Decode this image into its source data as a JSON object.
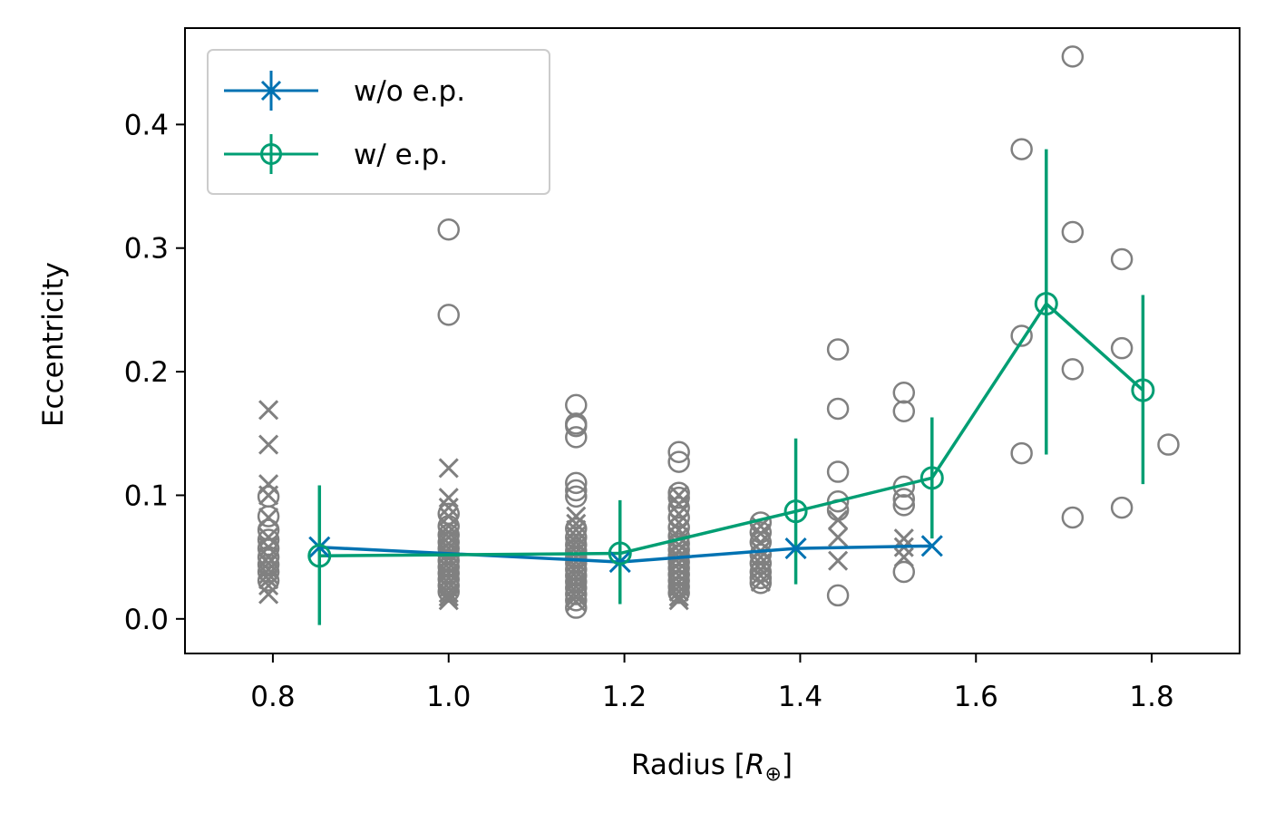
{
  "chart_data": {
    "type": "scatter",
    "title": "",
    "xlabel": "Radius [R_⊕]",
    "xlabel_parts": {
      "prefix": "Radius [",
      "symbol": "R",
      "subscript": "⊕",
      "suffix": "]"
    },
    "ylabel": "Eccentricity",
    "xlim": [
      0.7,
      1.9
    ],
    "ylim": [
      -0.028,
      0.478
    ],
    "xticks": [
      0.8,
      1.0,
      1.2,
      1.4,
      1.6,
      1.8
    ],
    "xtick_labels": [
      "0.8",
      "1.0",
      "1.2",
      "1.4",
      "1.6",
      "1.8"
    ],
    "yticks": [
      0.0,
      0.1,
      0.2,
      0.3,
      0.4
    ],
    "ytick_labels": [
      "0.0",
      "0.1",
      "0.2",
      "0.3",
      "0.4"
    ],
    "grid": false,
    "legend_position": "top-left",
    "colors": {
      "wo_ep": "#0072B2",
      "w_ep": "#009E73",
      "scatter": "#808080"
    },
    "series": [
      {
        "name": "w/o e.p.",
        "marker": "x",
        "color": "#0072B2",
        "points": [
          {
            "x": 0.853,
            "y": 0.058
          },
          {
            "x": 1.195,
            "y": 0.046
          },
          {
            "x": 1.395,
            "y": 0.057
          },
          {
            "x": 1.55,
            "y": 0.059
          }
        ]
      },
      {
        "name": "w/ e.p.",
        "marker": "o",
        "color": "#009E73",
        "points": [
          {
            "x": 0.853,
            "y": 0.051,
            "err_low": -0.005,
            "err_high": 0.108
          },
          {
            "x": 1.195,
            "y": 0.053,
            "err_low": 0.012,
            "err_high": 0.096
          },
          {
            "x": 1.395,
            "y": 0.087,
            "err_low": 0.028,
            "err_high": 0.146
          },
          {
            "x": 1.55,
            "y": 0.114,
            "err_low": 0.065,
            "err_high": 0.163
          },
          {
            "x": 1.68,
            "y": 0.255,
            "err_low": 0.133,
            "err_high": 0.38
          },
          {
            "x": 1.79,
            "y": 0.185,
            "err_low": 0.109,
            "err_high": 0.262
          }
        ]
      }
    ],
    "scatter_crosses": [
      {
        "x": 0.795,
        "y": [
          0.169,
          0.141,
          0.109,
          0.1,
          0.082,
          0.066,
          0.058,
          0.05,
          0.045,
          0.04,
          0.036,
          0.032,
          0.027,
          0.02
        ]
      },
      {
        "x": 1.0,
        "y": [
          0.122,
          0.098,
          0.09,
          0.083,
          0.075,
          0.07,
          0.066,
          0.061,
          0.057,
          0.053,
          0.049,
          0.045,
          0.041,
          0.037,
          0.033,
          0.029,
          0.025,
          0.021,
          0.018,
          0.015
        ]
      },
      {
        "x": 1.145,
        "y": [
          0.083,
          0.077,
          0.072,
          0.067,
          0.062,
          0.058,
          0.054,
          0.05,
          0.046,
          0.042,
          0.038,
          0.034,
          0.03,
          0.026,
          0.022,
          0.018,
          0.014
        ]
      },
      {
        "x": 1.262,
        "y": [
          0.1,
          0.093,
          0.085,
          0.078,
          0.072,
          0.066,
          0.06,
          0.055,
          0.05,
          0.045,
          0.04,
          0.035,
          0.03,
          0.026,
          0.022,
          0.018,
          0.015
        ]
      },
      {
        "x": 1.355,
        "y": [
          0.075,
          0.069,
          0.062,
          0.055,
          0.05,
          0.045,
          0.04,
          0.035,
          0.03
        ]
      },
      {
        "x": 1.443,
        "y": [
          0.08,
          0.066,
          0.047
        ]
      },
      {
        "x": 1.518,
        "y": [
          0.065,
          0.058,
          0.05
        ]
      }
    ],
    "scatter_circles": [
      {
        "x": 0.795,
        "y": [
          0.099,
          0.083,
          0.072,
          0.064,
          0.057,
          0.05,
          0.044,
          0.038,
          0.031
        ]
      },
      {
        "x": 1.0,
        "y": [
          0.315,
          0.246,
          0.085,
          0.075,
          0.068,
          0.062,
          0.057,
          0.052,
          0.047,
          0.042,
          0.037,
          0.032,
          0.027,
          0.022
        ]
      },
      {
        "x": 1.145,
        "y": [
          0.173,
          0.158,
          0.156,
          0.147,
          0.11,
          0.104,
          0.099,
          0.073,
          0.066,
          0.06,
          0.055,
          0.05,
          0.045,
          0.04,
          0.035,
          0.03,
          0.025,
          0.02,
          0.015,
          0.009
        ]
      },
      {
        "x": 1.262,
        "y": [
          0.135,
          0.127,
          0.102,
          0.098,
          0.09,
          0.082,
          0.074,
          0.067,
          0.061,
          0.056,
          0.051,
          0.046,
          0.041,
          0.036,
          0.031,
          0.026,
          0.021
        ]
      },
      {
        "x": 1.355,
        "y": [
          0.078,
          0.07,
          0.062,
          0.052,
          0.045,
          0.038,
          0.033,
          0.029
        ]
      },
      {
        "x": 1.443,
        "y": [
          0.218,
          0.17,
          0.119,
          0.095,
          0.088,
          0.019
        ]
      },
      {
        "x": 1.518,
        "y": [
          0.183,
          0.168,
          0.107,
          0.097,
          0.092,
          0.038
        ]
      },
      {
        "x": 1.652,
        "y": [
          0.38,
          0.229,
          0.134
        ]
      },
      {
        "x": 1.71,
        "y": [
          0.455,
          0.313,
          0.202,
          0.082
        ]
      },
      {
        "x": 1.766,
        "y": [
          0.291,
          0.219,
          0.09
        ]
      },
      {
        "x": 1.819,
        "y": [
          0.141
        ]
      }
    ]
  }
}
